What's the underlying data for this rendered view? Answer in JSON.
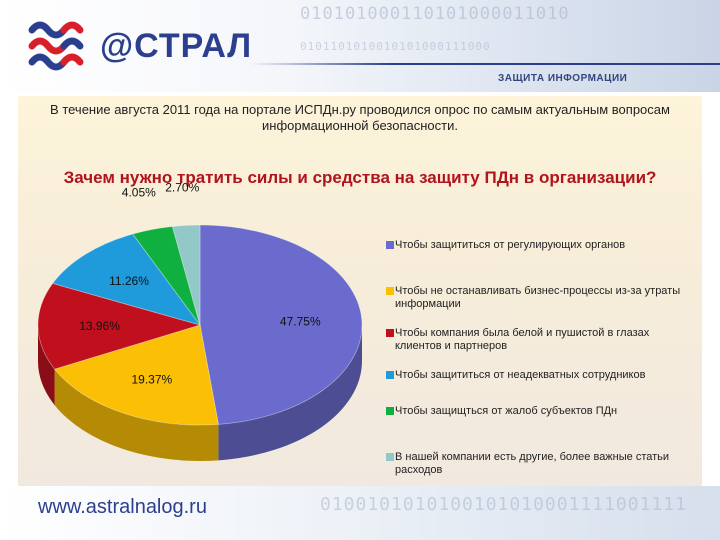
{
  "header": {
    "brand": "@СТРАЛ",
    "subtitle": "ЗАЩИТА ИНФОРМАЦИИ",
    "binary_top": "010101000110101000011010",
    "binary_bottom": "0101101010010101000111000",
    "logo_icon": "astral-logo-icon"
  },
  "intro_text": "В течение августа 2011 года на портале ИСПДн.ру проводился опрос по самым актуальным вопросам информационной безопасности.",
  "question": "Зачем нужно тратить силы и средства на защиту ПДн в  организации?",
  "footer": {
    "url": "www.astralnalog.ru",
    "binary": "0100101010100101010001111001111"
  },
  "chart_data": {
    "type": "pie",
    "title": "Зачем нужно тратить силы и средства на защиту ПДн в  организации?",
    "legend_position": "right",
    "categories": [
      "Чтобы защититься от регулирующих органов",
      "Чтобы не останавливать бизнес-процессы из-за утраты информации",
      "Чтобы компания была белой и пушистой в глазах клиентов и партнеров",
      "Чтобы защититься от неадекватных сотрудников",
      "Чтобы защищться от жалоб субъектов ПДн",
      "В нашей компании есть другие, более важные статьи расходов"
    ],
    "values": [
      47.75,
      19.37,
      13.96,
      11.26,
      4.05,
      2.7
    ],
    "data_labels": [
      "47.75%",
      "19.37%",
      "13.96%",
      "11.26%",
      "4.05%",
      "2.70%"
    ],
    "colors": [
      "#6b6bce",
      "#fbbf06",
      "#c0101e",
      "#1f9bdc",
      "#10b040",
      "#92c8c8"
    ]
  }
}
